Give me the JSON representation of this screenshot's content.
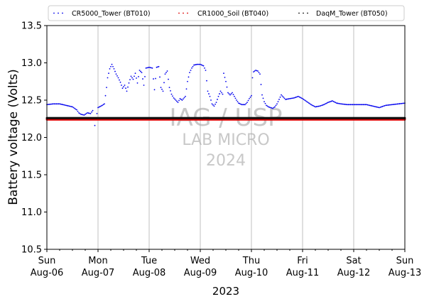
{
  "chart_data": {
    "type": "scatter",
    "ylabel": "Battery voltage (Volts)",
    "xlabel": "2023",
    "ylim": [
      10.5,
      13.5
    ],
    "yticks": [
      "10.5",
      "11.0",
      "11.5",
      "12.0",
      "12.5",
      "13.0",
      "13.5"
    ],
    "xlim_days": [
      6,
      13
    ],
    "xticks": [
      {
        "day": 6,
        "dow": "Sun",
        "date": "Aug-06"
      },
      {
        "day": 7,
        "dow": "Mon",
        "date": "Aug-07"
      },
      {
        "day": 8,
        "dow": "Tue",
        "date": "Aug-08"
      },
      {
        "day": 9,
        "dow": "Wed",
        "date": "Aug-09"
      },
      {
        "day": 10,
        "dow": "Thu",
        "date": "Aug-10"
      },
      {
        "day": 11,
        "dow": "Fri",
        "date": "Aug-11"
      },
      {
        "day": 12,
        "dow": "Sat",
        "date": "Aug-12"
      },
      {
        "day": 13,
        "dow": "Sun",
        "date": "Aug-13"
      }
    ],
    "grid": "vertical",
    "legend_position": "top",
    "watermark": [
      "IAG / USP",
      "LAB MICRO",
      "2024"
    ],
    "series": [
      {
        "name": "CR5000_Tower (BT010)",
        "color": "#0000ee",
        "points": [
          [
            "2023-08-06 00:00",
            12.44
          ],
          [
            "2023-08-06 03:00",
            12.45
          ],
          [
            "2023-08-06 06:00",
            12.45
          ],
          [
            "2023-08-06 09:00",
            12.43
          ],
          [
            "2023-08-06 12:00",
            12.41
          ],
          [
            "2023-08-06 14:00",
            12.37
          ],
          [
            "2023-08-06 15:00",
            12.33
          ],
          [
            "2023-08-06 16:00",
            12.31
          ],
          [
            "2023-08-06 17:30",
            12.3
          ],
          [
            "2023-08-06 19:00",
            12.33
          ],
          [
            "2023-08-06 20:30",
            12.32
          ],
          [
            "2023-08-06 21:30",
            12.36
          ],
          [
            "2023-08-06 22:30",
            12.16
          ],
          [
            "2023-08-07 00:00",
            12.4
          ],
          [
            "2023-08-07 02:00",
            12.43
          ],
          [
            "2023-08-07 03:00",
            12.45
          ],
          [
            "2023-08-07 04:00",
            12.67
          ],
          [
            "2023-08-07 04:30",
            12.8
          ],
          [
            "2023-08-07 05:30",
            12.92
          ],
          [
            "2023-08-07 06:30",
            12.98
          ],
          [
            "2023-08-07 07:30",
            12.92
          ],
          [
            "2023-08-07 08:30",
            12.85
          ],
          [
            "2023-08-07 09:30",
            12.8
          ],
          [
            "2023-08-07 10:30",
            12.74
          ],
          [
            "2023-08-07 11:30",
            12.66
          ],
          [
            "2023-08-07 12:30",
            12.7
          ],
          [
            "2023-08-07 13:30",
            12.62
          ],
          [
            "2023-08-07 14:30",
            12.73
          ],
          [
            "2023-08-07 15:30",
            12.82
          ],
          [
            "2023-08-07 16:30",
            12.78
          ],
          [
            "2023-08-07 17:30",
            12.86
          ],
          [
            "2023-08-07 18:30",
            12.73
          ],
          [
            "2023-08-07 19:30",
            12.9
          ],
          [
            "2023-08-07 20:30",
            12.87
          ],
          [
            "2023-08-07 21:30",
            12.7
          ],
          [
            "2023-08-07 22:30",
            12.93
          ],
          [
            "2023-08-08 00:00",
            12.94
          ],
          [
            "2023-08-08 01:30",
            12.93
          ],
          [
            "2023-08-08 02:30",
            12.64
          ],
          [
            "2023-08-08 03:30",
            12.94
          ],
          [
            "2023-08-08 04:30",
            12.95
          ],
          [
            "2023-08-08 05:30",
            12.67
          ],
          [
            "2023-08-08 06:30",
            12.62
          ],
          [
            "2023-08-08 07:30",
            12.85
          ],
          [
            "2023-08-08 08:30",
            12.89
          ],
          [
            "2023-08-08 09:30",
            12.67
          ],
          [
            "2023-08-08 10:30",
            12.58
          ],
          [
            "2023-08-08 11:30",
            12.53
          ],
          [
            "2023-08-08 12:30",
            12.5
          ],
          [
            "2023-08-08 13:30",
            12.47
          ],
          [
            "2023-08-08 14:30",
            12.52
          ],
          [
            "2023-08-08 15:30",
            12.5
          ],
          [
            "2023-08-08 17:00",
            12.55
          ],
          [
            "2023-08-08 18:00",
            12.75
          ],
          [
            "2023-08-08 19:00",
            12.87
          ],
          [
            "2023-08-08 20:00",
            12.93
          ],
          [
            "2023-08-08 21:00",
            12.97
          ],
          [
            "2023-08-08 22:30",
            12.98
          ],
          [
            "2023-08-09 00:00",
            12.98
          ],
          [
            "2023-08-09 01:30",
            12.96
          ],
          [
            "2023-08-09 02:30",
            12.9
          ],
          [
            "2023-08-09 03:30",
            12.62
          ],
          [
            "2023-08-09 04:30",
            12.55
          ],
          [
            "2023-08-09 05:30",
            12.45
          ],
          [
            "2023-08-09 06:30",
            12.42
          ],
          [
            "2023-08-09 07:30",
            12.47
          ],
          [
            "2023-08-09 08:30",
            12.55
          ],
          [
            "2023-08-09 09:30",
            12.62
          ],
          [
            "2023-08-09 10:30",
            12.58
          ],
          [
            "2023-08-09 11:00",
            12.86
          ],
          [
            "2023-08-09 12:00",
            12.75
          ],
          [
            "2023-08-09 13:00",
            12.6
          ],
          [
            "2023-08-09 14:00",
            12.57
          ],
          [
            "2023-08-09 15:00",
            12.6
          ],
          [
            "2023-08-09 16:00",
            12.55
          ],
          [
            "2023-08-09 17:00",
            12.5
          ],
          [
            "2023-08-09 18:00",
            12.46
          ],
          [
            "2023-08-09 19:30",
            12.44
          ],
          [
            "2023-08-09 21:00",
            12.44
          ],
          [
            "2023-08-09 22:00",
            12.47
          ],
          [
            "2023-08-09 23:00",
            12.52
          ],
          [
            "2023-08-10 00:00",
            12.56
          ],
          [
            "2023-08-10 00:30",
            12.8
          ],
          [
            "2023-08-10 01:00",
            12.88
          ],
          [
            "2023-08-10 02:00",
            12.9
          ],
          [
            "2023-08-10 03:00",
            12.89
          ],
          [
            "2023-08-10 04:00",
            12.85
          ],
          [
            "2023-08-10 05:00",
            12.57
          ],
          [
            "2023-08-10 06:00",
            12.48
          ],
          [
            "2023-08-10 07:00",
            12.43
          ],
          [
            "2023-08-10 08:00",
            12.41
          ],
          [
            "2023-08-10 09:00",
            12.4
          ],
          [
            "2023-08-10 10:00",
            12.39
          ],
          [
            "2023-08-10 11:00",
            12.41
          ],
          [
            "2023-08-10 12:00",
            12.45
          ],
          [
            "2023-08-10 14:00",
            12.57
          ],
          [
            "2023-08-10 16:00",
            12.51
          ],
          [
            "2023-08-10 18:00",
            12.52
          ],
          [
            "2023-08-10 20:00",
            12.53
          ],
          [
            "2023-08-10 22:00",
            12.55
          ],
          [
            "2023-08-11 00:00",
            12.52
          ],
          [
            "2023-08-11 02:00",
            12.48
          ],
          [
            "2023-08-11 04:00",
            12.44
          ],
          [
            "2023-08-11 06:00",
            12.41
          ],
          [
            "2023-08-11 08:00",
            12.42
          ],
          [
            "2023-08-11 10:00",
            12.44
          ],
          [
            "2023-08-11 12:00",
            12.47
          ],
          [
            "2023-08-11 14:00",
            12.49
          ],
          [
            "2023-08-11 16:00",
            12.46
          ],
          [
            "2023-08-11 18:00",
            12.45
          ],
          [
            "2023-08-11 21:00",
            12.44
          ],
          [
            "2023-08-12 00:00",
            12.44
          ],
          [
            "2023-08-12 03:00",
            12.44
          ],
          [
            "2023-08-12 06:00",
            12.44
          ],
          [
            "2023-08-12 09:00",
            12.42
          ],
          [
            "2023-08-12 12:00",
            12.4
          ],
          [
            "2023-08-12 15:00",
            12.43
          ],
          [
            "2023-08-12 18:00",
            12.44
          ],
          [
            "2023-08-12 21:00",
            12.45
          ],
          [
            "2023-08-13 00:00",
            12.46
          ]
        ]
      },
      {
        "name": "CR1000_Soil (BT040)",
        "color": "#dd0000",
        "points": [
          [
            "2023-08-06 00:00",
            12.24
          ],
          [
            "2023-08-06 12:00",
            12.24
          ],
          [
            "2023-08-07 00:00",
            12.24
          ],
          [
            "2023-08-07 12:00",
            12.24
          ],
          [
            "2023-08-08 00:00",
            12.24
          ],
          [
            "2023-08-08 12:00",
            12.24
          ],
          [
            "2023-08-09 00:00",
            12.24
          ],
          [
            "2023-08-09 12:00",
            12.24
          ],
          [
            "2023-08-10 00:00",
            12.24
          ],
          [
            "2023-08-10 12:00",
            12.24
          ],
          [
            "2023-08-11 00:00",
            12.24
          ],
          [
            "2023-08-11 12:00",
            12.24
          ],
          [
            "2023-08-12 00:00",
            12.24
          ],
          [
            "2023-08-12 12:00",
            12.24
          ],
          [
            "2023-08-13 00:00",
            12.24
          ]
        ]
      },
      {
        "name": "DaqM_Tower (BT050)",
        "color": "#111111",
        "points": [
          [
            "2023-08-06 00:00",
            12.26
          ],
          [
            "2023-08-06 12:00",
            12.26
          ],
          [
            "2023-08-07 00:00",
            12.26
          ],
          [
            "2023-08-07 12:00",
            12.26
          ],
          [
            "2023-08-08 00:00",
            12.26
          ],
          [
            "2023-08-08 12:00",
            12.26
          ],
          [
            "2023-08-09 00:00",
            12.26
          ],
          [
            "2023-08-09 12:00",
            12.26
          ],
          [
            "2023-08-10 00:00",
            12.26
          ],
          [
            "2023-08-10 12:00",
            12.26
          ],
          [
            "2023-08-11 00:00",
            12.26
          ],
          [
            "2023-08-11 12:00",
            12.26
          ],
          [
            "2023-08-12 00:00",
            12.26
          ],
          [
            "2023-08-12 12:00",
            12.26
          ],
          [
            "2023-08-13 00:00",
            12.26
          ]
        ]
      }
    ]
  }
}
